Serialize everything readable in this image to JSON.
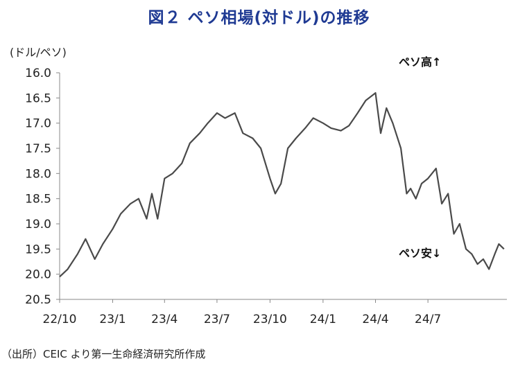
{
  "title": "図２ ペソ相場(対ドル)の推移",
  "unit_label": "(ドル/ペソ)",
  "source": "（出所）CEIC より第一生命経済研究所作成",
  "chart_data": {
    "type": "line",
    "title": "図２ ペソ相場(対ドル)の推移",
    "ylabel": "(ドル/ペソ)",
    "xlabel": "",
    "y_inverted": true,
    "ylim": [
      16.0,
      20.5
    ],
    "yticks": [
      "16.0",
      "16.5",
      "17.0",
      "17.5",
      "18.0",
      "18.5",
      "19.0",
      "19.5",
      "20.0",
      "20.5"
    ],
    "xticks": [
      "22/10",
      "23/1",
      "23/4",
      "23/7",
      "23/10",
      "24/1",
      "24/4",
      "24/7"
    ],
    "annotations": [
      "ペソ高↑",
      "ペソ安↓"
    ],
    "grid": false,
    "series": [
      {
        "x": [
          "2022-10-01",
          "2022-10-15",
          "2022-11-01",
          "2022-11-15",
          "2022-12-01",
          "2022-12-15",
          "2023-01-01",
          "2023-01-15",
          "2023-02-01",
          "2023-02-15",
          "2023-03-01",
          "2023-03-10",
          "2023-03-20",
          "2023-04-01",
          "2023-04-15",
          "2023-05-01",
          "2023-05-15",
          "2023-06-01",
          "2023-06-15",
          "2023-07-01",
          "2023-07-15",
          "2023-08-01",
          "2023-08-15",
          "2023-09-01",
          "2023-09-15",
          "2023-10-01",
          "2023-10-10",
          "2023-10-20",
          "2023-11-01",
          "2023-11-15",
          "2023-12-01",
          "2023-12-15",
          "2024-01-01",
          "2024-01-15",
          "2024-02-01",
          "2024-02-15",
          "2024-03-01",
          "2024-03-15",
          "2024-04-01",
          "2024-04-10",
          "2024-04-20",
          "2024-05-01",
          "2024-05-15",
          "2024-05-25",
          "2024-06-01",
          "2024-06-10",
          "2024-06-20",
          "2024-07-01",
          "2024-07-15",
          "2024-07-25",
          "2024-08-05",
          "2024-08-15",
          "2024-08-25",
          "2024-09-05",
          "2024-09-15",
          "2024-09-25",
          "2024-10-05",
          "2024-10-15",
          "2024-10-25",
          "2024-11-01",
          "2024-11-10"
        ],
        "y": [
          20.05,
          19.9,
          19.6,
          19.3,
          19.7,
          19.4,
          19.1,
          18.8,
          18.6,
          18.5,
          18.9,
          18.4,
          18.9,
          18.1,
          18.0,
          17.8,
          17.4,
          17.2,
          17.0,
          16.8,
          16.9,
          16.8,
          17.2,
          17.3,
          17.5,
          18.1,
          18.4,
          18.2,
          17.5,
          17.3,
          17.1,
          16.9,
          17.0,
          17.1,
          17.15,
          17.05,
          16.8,
          16.55,
          16.4,
          17.2,
          16.7,
          17.0,
          17.5,
          18.4,
          18.3,
          18.5,
          18.2,
          18.1,
          17.9,
          18.6,
          18.4,
          19.2,
          19.0,
          19.5,
          19.6,
          19.8,
          19.7,
          19.9,
          19.6,
          19.4,
          19.5
        ]
      }
    ]
  }
}
